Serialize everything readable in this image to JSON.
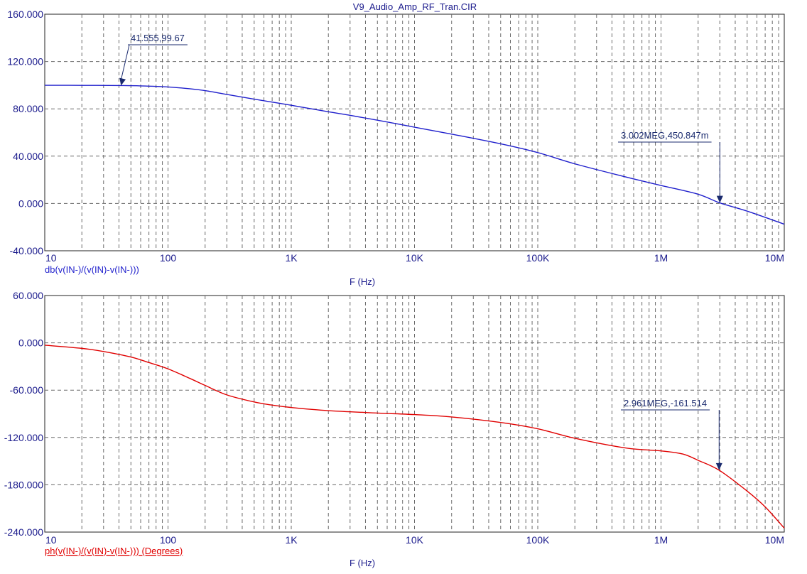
{
  "window": {
    "title": "V9_Audio_Amp_RF_Tran.CIR"
  },
  "colors": {
    "magnitude": "#1f1fcc",
    "phase": "#e00000",
    "marker": "#1a2a6e",
    "axis_text": "#1a1a8c",
    "grid": "#6a6a6a"
  },
  "chart_data": [
    {
      "type": "line",
      "title": "V9_Audio_Amp_RF_Tran.CIR",
      "xlabel": "F (Hz)",
      "ylabel": "db(v(IN-)/(v(IN)-v(IN-)))",
      "x_scale": "log",
      "xlim": [
        10,
        10000000
      ],
      "ylim": [
        -40,
        160
      ],
      "x_tick_labels": [
        "10",
        "100",
        "1K",
        "10K",
        "100K",
        "1M",
        "10M"
      ],
      "y_tick_labels": [
        "160.000",
        "120.000",
        "80.000",
        "40.000",
        "0.000",
        "-40.000"
      ],
      "grid": true,
      "series": [
        {
          "name": "db(v(IN-)/(v(IN)-v(IN-)))",
          "x": [
            10,
            20,
            41.555,
            60,
            100,
            150,
            200,
            300,
            500,
            1000,
            2000,
            3000,
            5000,
            10000,
            20000,
            50000,
            100000,
            200000,
            500000,
            1000000,
            2000000,
            3002000,
            5000000,
            10000000
          ],
          "y": [
            99.9,
            99.85,
            99.67,
            99.4,
            98.5,
            97.0,
            95.4,
            92.2,
            88.2,
            83.0,
            77.5,
            74.5,
            70.4,
            64.5,
            58.6,
            50.4,
            43.0,
            33.5,
            22.8,
            15.2,
            7.8,
            0.45,
            -6.5,
            -17.5
          ]
        }
      ],
      "annotations": [
        {
          "text": "41.555,99.67",
          "x": 41.555,
          "y": 99.67
        },
        {
          "text": "3.002MEG,450.847m",
          "x": 3002000,
          "y": 0.450847
        }
      ]
    },
    {
      "type": "line",
      "xlabel": "F (Hz)",
      "ylabel": "ph(v(IN-)/(v(IN)-v(IN-))) (Degrees)",
      "x_scale": "log",
      "xlim": [
        10,
        10000000
      ],
      "ylim": [
        -240,
        60
      ],
      "x_tick_labels": [
        "10",
        "100",
        "1K",
        "10K",
        "100K",
        "1M",
        "10M"
      ],
      "y_tick_labels": [
        "60.000",
        "0.000",
        "-60.000",
        "-120.000",
        "-180.000",
        "-240.000"
      ],
      "grid": true,
      "series": [
        {
          "name": "ph(v(IN-)/(v(IN)-v(IN-))) (Degrees)",
          "x": [
            10,
            20,
            30,
            50,
            70,
            100,
            150,
            200,
            300,
            500,
            700,
            1000,
            2000,
            5000,
            10000,
            20000,
            50000,
            100000,
            200000,
            500000,
            800000,
            1000000,
            1500000,
            2000000,
            2961000,
            5000000,
            7000000,
            10000000
          ],
          "y": [
            -3,
            -7,
            -11,
            -18,
            -25,
            -33,
            -45,
            -54,
            -66,
            -75,
            -79,
            -82,
            -86,
            -89,
            -91,
            -94,
            -101,
            -109,
            -121,
            -133,
            -136,
            -137,
            -141,
            -149,
            -161.514,
            -188,
            -208,
            -235
          ]
        }
      ],
      "annotations": [
        {
          "text": "2.961MEG,-161.514",
          "x": 2961000,
          "y": -161.514
        }
      ]
    }
  ]
}
